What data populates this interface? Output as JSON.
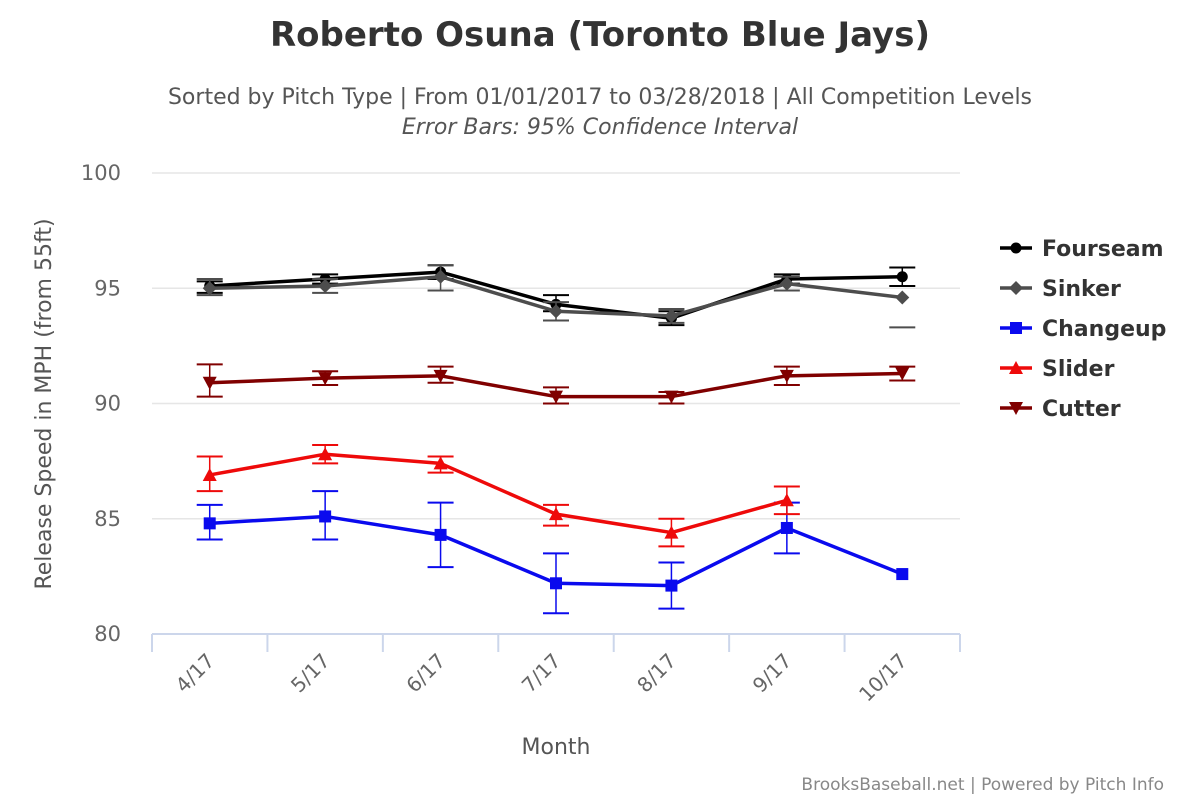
{
  "chart_data": {
    "type": "line",
    "title": "Roberto Osuna (Toronto Blue Jays)",
    "subtitle": "Sorted by Pitch Type | From 01/01/2017 to 03/28/2018 | All Competition Levels",
    "subtitle2": "Error Bars: 95% Confidence Interval",
    "xlabel": "Month",
    "ylabel": "Release Speed in MPH (from 55ft)",
    "credits": "BrooksBaseball.net | Powered by Pitch Info",
    "categories": [
      "4/17",
      "5/17",
      "6/17",
      "7/17",
      "8/17",
      "9/17",
      "10/17"
    ],
    "ylim": [
      80,
      100
    ],
    "yticks": [
      80,
      85,
      90,
      95,
      100
    ],
    "grid": true,
    "legend_position": "right",
    "series": [
      {
        "name": "Fourseam",
        "color": "#000000",
        "marker": "circle",
        "values": [
          95.1,
          95.4,
          95.7,
          94.3,
          93.7,
          95.4,
          95.5
        ],
        "low": [
          94.8,
          95.2,
          95.4,
          94.0,
          93.4,
          95.2,
          95.1
        ],
        "high": [
          95.3,
          95.6,
          96.0,
          94.7,
          94.0,
          95.6,
          95.9
        ]
      },
      {
        "name": "Sinker",
        "color": "#4d4d4d",
        "marker": "diamond",
        "values": [
          95.0,
          95.1,
          95.5,
          94.0,
          93.8,
          95.2,
          94.6
        ],
        "low": [
          94.7,
          94.8,
          94.9,
          93.6,
          93.5,
          94.9,
          93.3
        ],
        "high": [
          95.4,
          95.4,
          96.0,
          94.4,
          94.1,
          95.5,
          null
        ]
      },
      {
        "name": "Changeup",
        "color": "#0a0aee",
        "marker": "square",
        "values": [
          84.8,
          85.1,
          84.3,
          82.2,
          82.1,
          84.6,
          82.6
        ],
        "low": [
          84.1,
          84.1,
          82.9,
          80.9,
          81.1,
          83.5,
          null
        ],
        "high": [
          85.6,
          86.2,
          85.7,
          83.5,
          83.1,
          85.7,
          null
        ]
      },
      {
        "name": "Slider",
        "color": "#ee0a0a",
        "marker": "triangle",
        "values": [
          86.9,
          87.8,
          87.4,
          85.2,
          84.4,
          85.8,
          null
        ],
        "low": [
          86.2,
          87.4,
          87.0,
          84.7,
          83.8,
          85.2,
          null
        ],
        "high": [
          87.7,
          88.2,
          87.7,
          85.6,
          85.0,
          86.4,
          null
        ]
      },
      {
        "name": "Cutter",
        "color": "#800000",
        "marker": "triangle-down",
        "values": [
          90.9,
          91.1,
          91.2,
          90.3,
          90.3,
          91.2,
          91.3
        ],
        "low": [
          90.3,
          90.8,
          90.9,
          90.0,
          90.0,
          90.8,
          91.0
        ],
        "high": [
          91.7,
          91.4,
          91.6,
          90.7,
          90.5,
          91.6,
          91.6
        ]
      }
    ]
  }
}
